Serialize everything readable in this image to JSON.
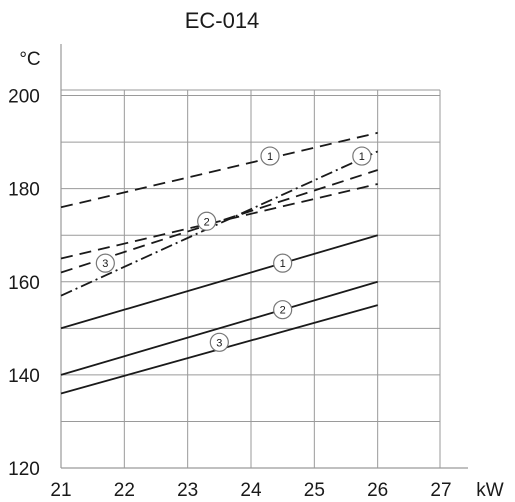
{
  "chart_data": {
    "type": "line",
    "title": "EC-014",
    "xlabel": "kW",
    "ylabel": "°C",
    "xlim": [
      21,
      27
    ],
    "ylim": [
      120,
      210
    ],
    "x_ticks": [
      "21",
      "22",
      "23",
      "24",
      "25",
      "26",
      "27"
    ],
    "y_ticks": [
      "120",
      "140",
      "160",
      "180",
      "200"
    ],
    "grid": true,
    "legend": "none",
    "series": [
      {
        "name": "1",
        "style": "solid",
        "x": [
          21,
          26
        ],
        "y": [
          150,
          170
        ],
        "marker_at": [
          24.5,
          164
        ]
      },
      {
        "name": "2",
        "style": "solid",
        "x": [
          21,
          26
        ],
        "y": [
          140,
          160
        ],
        "marker_at": [
          24.5,
          154
        ]
      },
      {
        "name": "3",
        "style": "solid",
        "x": [
          21,
          26
        ],
        "y": [
          136,
          155
        ],
        "marker_at": [
          23.5,
          147
        ]
      },
      {
        "name": "1",
        "style": "dashed",
        "x": [
          21,
          26
        ],
        "y": [
          176,
          192
        ],
        "marker_at": [
          24.3,
          187
        ]
      },
      {
        "name": "2",
        "style": "dashed",
        "x": [
          21,
          26
        ],
        "y": [
          165,
          181
        ],
        "marker_at": [
          23.3,
          173
        ]
      },
      {
        "name": "3",
        "style": "dashed",
        "x": [
          21,
          26
        ],
        "y": [
          162,
          184
        ],
        "marker_at": [
          21.7,
          164
        ]
      },
      {
        "name": "1",
        "style": "dashdot",
        "x": [
          21,
          26
        ],
        "y": [
          157,
          188
        ],
        "marker_at": [
          25.75,
          187
        ]
      }
    ]
  }
}
